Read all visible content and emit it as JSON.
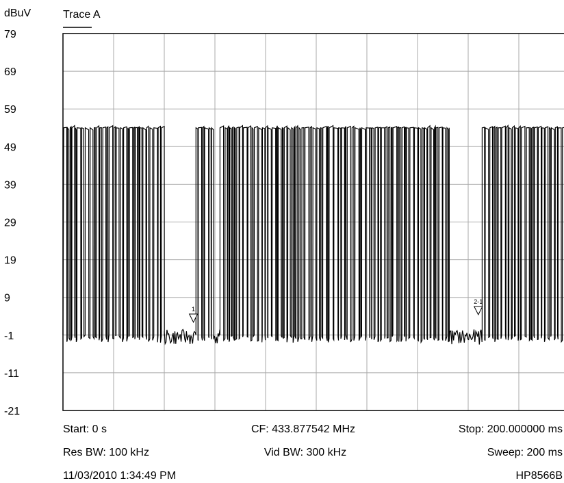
{
  "chart_data": {
    "type": "line",
    "title": "Trace A",
    "ylabel": "dBuV",
    "ylim": [
      -21,
      79
    ],
    "xlim": [
      0,
      200
    ],
    "x_unit": "ms",
    "y_ticks": [
      "79",
      "69",
      "59",
      "49",
      "39",
      "29",
      "19",
      "9",
      "-1",
      "-11",
      "-21"
    ],
    "grid": true,
    "levels": {
      "high": 54,
      "noise_floor": -1,
      "dip_min": -3
    },
    "segments": [
      {
        "type": "burst",
        "x": [
          0.3,
          40.0
        ]
      },
      {
        "type": "floor",
        "x": [
          40.0,
          52.5
        ]
      },
      {
        "type": "burst",
        "x": [
          52.5,
          59.5
        ]
      },
      {
        "type": "floor",
        "x": [
          59.5,
          62.0
        ]
      },
      {
        "type": "burst",
        "x": [
          62.0,
          152.5
        ]
      },
      {
        "type": "floor",
        "x": [
          152.5,
          165.5
        ]
      },
      {
        "type": "burst",
        "x": [
          165.5,
          200.0
        ]
      }
    ],
    "markers": [
      {
        "label": "1",
        "x": 51.5,
        "y": 3.5
      },
      {
        "label": "2-1",
        "x": 164.0,
        "y": 5.5
      }
    ],
    "info": {
      "start": "Start: 0 s",
      "cf": "CF: 433.877542 MHz",
      "stop": "Stop: 200.000000 ms",
      "res_bw": "Res BW: 100 kHz",
      "vid_bw": "Vid BW: 300 kHz",
      "sweep": "Sweep: 200 ms",
      "timestamp": "11/03/2010 1:34:49 PM",
      "instrument": "HP8566B"
    }
  }
}
